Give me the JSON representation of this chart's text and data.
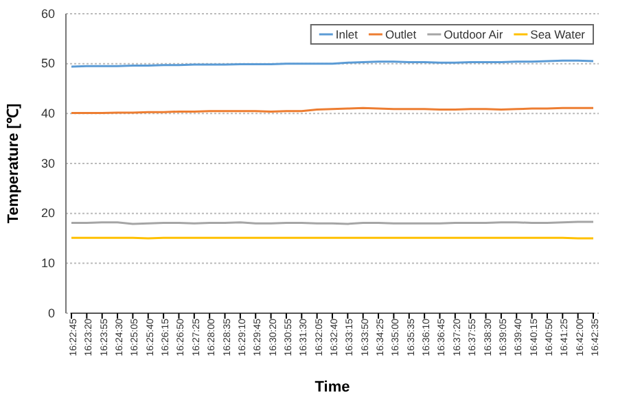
{
  "chart_data": {
    "type": "line",
    "xlabel": "Time",
    "ylabel": "Temperature [℃]",
    "categories": [
      "16:22:45",
      "16:23:20",
      "16:23:55",
      "16:24:30",
      "16:25:05",
      "16:25:40",
      "16:26:15",
      "16:26:50",
      "16:27:25",
      "16:28:00",
      "16:28:35",
      "16:29:10",
      "16:29:45",
      "16:30:20",
      "16:30:55",
      "16:31:30",
      "16:32:05",
      "16:32:40",
      "16:33:15",
      "16:33:50",
      "16:34:25",
      "16:35:00",
      "16:35:35",
      "16:36:10",
      "16:36:45",
      "16:37:20",
      "16:37:55",
      "16:38:30",
      "16:39:05",
      "16:39:40",
      "16:40:15",
      "16:40:50",
      "16:41:25",
      "16:42:00",
      "16:42:35"
    ],
    "series": [
      {
        "name": "Inlet",
        "color": "#5b9bd5",
        "values": [
          49.4,
          49.5,
          49.5,
          49.5,
          49.6,
          49.6,
          49.7,
          49.7,
          49.8,
          49.8,
          49.8,
          49.9,
          49.9,
          49.9,
          50.0,
          50.0,
          50.0,
          50.0,
          50.2,
          50.3,
          50.4,
          50.4,
          50.3,
          50.3,
          50.2,
          50.2,
          50.3,
          50.3,
          50.3,
          50.4,
          50.4,
          50.5,
          50.6,
          50.6,
          50.5
        ]
      },
      {
        "name": "Outlet",
        "color": "#ed7d31",
        "values": [
          40.1,
          40.1,
          40.1,
          40.2,
          40.2,
          40.3,
          40.3,
          40.4,
          40.4,
          40.5,
          40.5,
          40.5,
          40.5,
          40.4,
          40.5,
          40.5,
          40.8,
          40.9,
          41.0,
          41.1,
          41.0,
          40.9,
          40.9,
          40.9,
          40.8,
          40.8,
          40.9,
          40.9,
          40.8,
          40.9,
          41.0,
          41.0,
          41.1,
          41.1,
          41.1
        ]
      },
      {
        "name": "Outdoor Air",
        "color": "#a5a5a5",
        "values": [
          18.1,
          18.1,
          18.2,
          18.2,
          17.9,
          18.0,
          18.1,
          18.1,
          18.0,
          18.1,
          18.1,
          18.2,
          18.0,
          18.0,
          18.1,
          18.1,
          18.0,
          18.0,
          17.9,
          18.1,
          18.1,
          18.0,
          18.0,
          18.0,
          18.0,
          18.1,
          18.1,
          18.1,
          18.2,
          18.2,
          18.1,
          18.1,
          18.2,
          18.3,
          18.3
        ]
      },
      {
        "name": "Sea Water",
        "color": "#ffc000",
        "values": [
          15.1,
          15.1,
          15.1,
          15.1,
          15.1,
          15.0,
          15.1,
          15.1,
          15.1,
          15.1,
          15.1,
          15.1,
          15.1,
          15.1,
          15.1,
          15.1,
          15.1,
          15.1,
          15.1,
          15.1,
          15.1,
          15.1,
          15.1,
          15.1,
          15.1,
          15.1,
          15.1,
          15.1,
          15.1,
          15.1,
          15.1,
          15.1,
          15.1,
          15.0,
          15.0
        ]
      }
    ],
    "ylim": [
      0,
      60
    ],
    "yticks": [
      0,
      10,
      20,
      30,
      40,
      50,
      60
    ],
    "grid": "y",
    "legend": "top right",
    "marker": "none",
    "line_style": "solid"
  }
}
